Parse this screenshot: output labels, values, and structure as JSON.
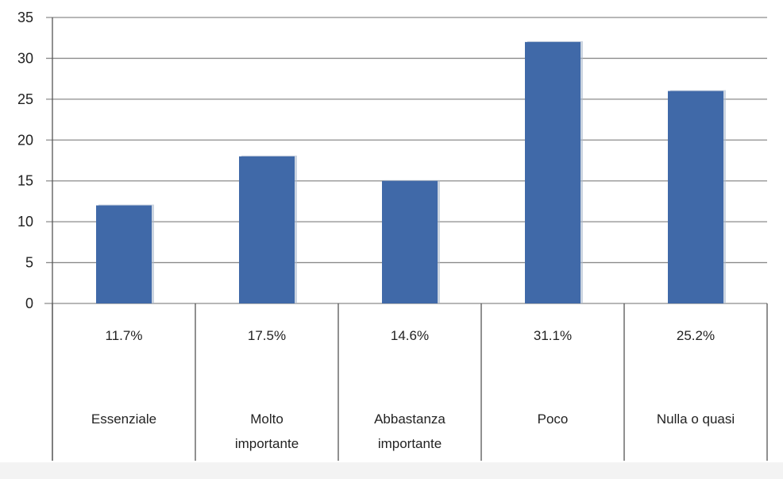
{
  "chart_data": {
    "type": "bar",
    "categories": [
      [
        "Essenziale"
      ],
      [
        "Molto",
        "importante"
      ],
      [
        "Abbastanza",
        "importante"
      ],
      [
        "Poco"
      ],
      [
        "Nulla o quasi"
      ]
    ],
    "values": [
      12,
      18,
      15,
      32,
      26
    ],
    "data_table_row": [
      "11.7%",
      "17.5%",
      "14.6%",
      "31.1%",
      "25.2%"
    ],
    "yticks": [
      "0",
      "5",
      "10",
      "15",
      "20",
      "25",
      "30",
      "35"
    ],
    "ylim": [
      0,
      35
    ],
    "grid": true,
    "legend": "none",
    "title": "",
    "xlabel": "",
    "ylabel": "",
    "colors": {
      "bar": "#4069a8",
      "bar_shadow": "#a9b7cb",
      "grid": "#8c8c8c",
      "plot_background": "#ffffff",
      "page_background": "#f3f3f3"
    }
  }
}
